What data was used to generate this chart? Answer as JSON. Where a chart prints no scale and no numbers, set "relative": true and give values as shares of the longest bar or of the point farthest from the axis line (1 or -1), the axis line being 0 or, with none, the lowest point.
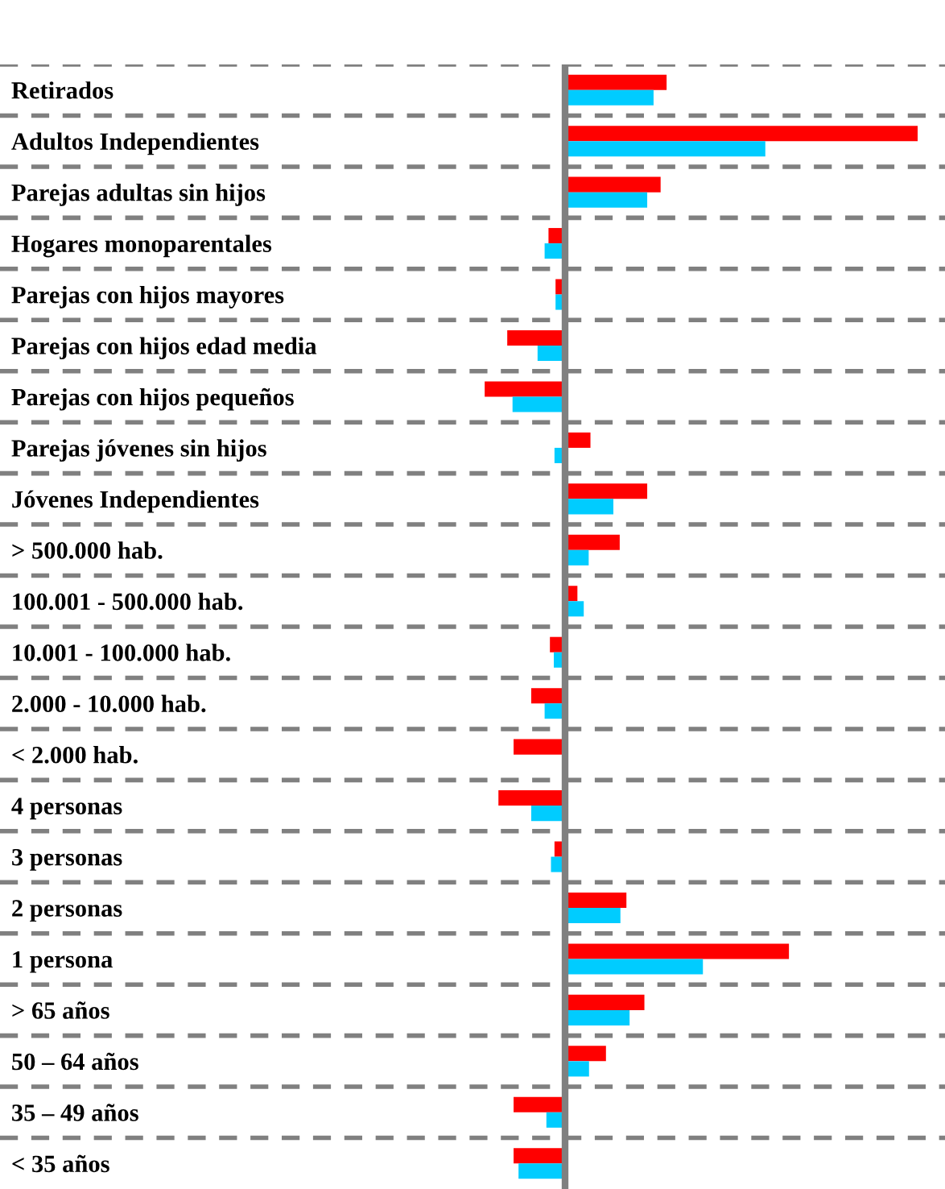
{
  "chart_data": {
    "type": "bar",
    "orientation": "horizontal",
    "relative": true,
    "grid": "y",
    "categories": [
      "Retirados",
      "Adultos Independientes",
      "Parejas adultas sin hijos",
      "Hogares monoparentales",
      "Parejas con hijos mayores",
      "Parejas con hijos edad media",
      "Parejas con hijos pequeños",
      "Parejas jóvenes sin hijos",
      "Jóvenes Independientes",
      "> 500.000 hab.",
      "100.001 - 500.000 hab.",
      "10.001 - 100.000 hab.",
      "2.000 - 10.000 hab.",
      "< 2.000 hab.",
      "4 personas",
      "3 personas",
      "2 personas",
      "1 persona",
      "> 65 años",
      "50 – 64 años",
      "35 – 49 años",
      "< 35 años"
    ],
    "series": [
      {
        "color": "#ff0000",
        "values": [
          0.288,
          1,
          0.271,
          -0.047,
          -0.027,
          -0.164,
          -0.228,
          0.072,
          0.233,
          0.155,
          0.035,
          -0.043,
          -0.096,
          -0.146,
          -0.189,
          -0.03,
          0.174,
          0.635,
          0.225,
          0.116,
          -0.146,
          -0.146
        ]
      },
      {
        "color": "#00ccff",
        "values": [
          0.251,
          0.568,
          0.233,
          -0.058,
          -0.027,
          -0.078,
          -0.149,
          -0.03,
          0.137,
          0.067,
          0.053,
          -0.032,
          -0.058,
          0,
          -0.096,
          -0.04,
          0.157,
          0.391,
          0.183,
          0.068,
          -0.053,
          -0.132
        ]
      }
    ]
  }
}
